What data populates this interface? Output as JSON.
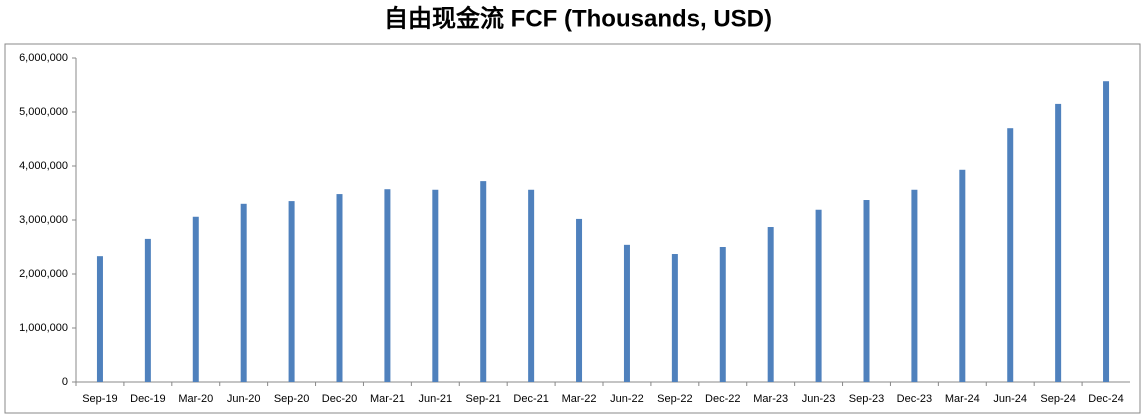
{
  "chart_data": {
    "type": "bar",
    "title": "自由现金流 FCF (Thousands, USD)",
    "categories": [
      "Sep-19",
      "Dec-19",
      "Mar-20",
      "Jun-20",
      "Sep-20",
      "Dec-20",
      "Mar-21",
      "Jun-21",
      "Sep-21",
      "Dec-21",
      "Mar-22",
      "Jun-22",
      "Sep-22",
      "Dec-22",
      "Mar-23",
      "Jun-23",
      "Sep-23",
      "Dec-23",
      "Mar-24",
      "Jun-24",
      "Sep-24",
      "Dec-24"
    ],
    "values": [
      2330000,
      2650000,
      3060000,
      3300000,
      3350000,
      3480000,
      3570000,
      3560000,
      3720000,
      3560000,
      3020000,
      2540000,
      2370000,
      2500000,
      2870000,
      3190000,
      3370000,
      3560000,
      3930000,
      4700000,
      5150000,
      5570000
    ],
    "color": "#4f81bd",
    "ylim": [
      0,
      6000000
    ],
    "yticks": [
      0,
      {
        "value": 1000000,
        "label": "1,000,000"
      },
      {
        "value": 2000000,
        "label": "2,000,000"
      },
      {
        "value": 3000000,
        "label": "3,000,000"
      },
      {
        "value": 4000000,
        "label": "4,000,000"
      },
      {
        "value": 5000000,
        "label": "5,000,000"
      },
      {
        "value": 6000000,
        "label": "6,000,000"
      }
    ],
    "grid": false
  }
}
